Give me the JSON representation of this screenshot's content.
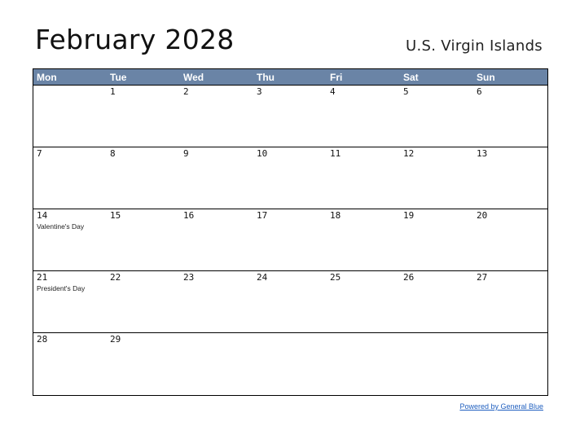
{
  "title": "February 2028",
  "region": "U.S. Virgin Islands",
  "headers": [
    "Mon",
    "Tue",
    "Wed",
    "Thu",
    "Fri",
    "Sat",
    "Sun"
  ],
  "weeks": [
    [
      {
        "day": "",
        "event": ""
      },
      {
        "day": "1",
        "event": ""
      },
      {
        "day": "2",
        "event": ""
      },
      {
        "day": "3",
        "event": ""
      },
      {
        "day": "4",
        "event": ""
      },
      {
        "day": "5",
        "event": ""
      },
      {
        "day": "6",
        "event": ""
      }
    ],
    [
      {
        "day": "7",
        "event": ""
      },
      {
        "day": "8",
        "event": ""
      },
      {
        "day": "9",
        "event": ""
      },
      {
        "day": "10",
        "event": ""
      },
      {
        "day": "11",
        "event": ""
      },
      {
        "day": "12",
        "event": ""
      },
      {
        "day": "13",
        "event": ""
      }
    ],
    [
      {
        "day": "14",
        "event": "Valentine's Day"
      },
      {
        "day": "15",
        "event": ""
      },
      {
        "day": "16",
        "event": ""
      },
      {
        "day": "17",
        "event": ""
      },
      {
        "day": "18",
        "event": ""
      },
      {
        "day": "19",
        "event": ""
      },
      {
        "day": "20",
        "event": ""
      }
    ],
    [
      {
        "day": "21",
        "event": "President's Day"
      },
      {
        "day": "22",
        "event": ""
      },
      {
        "day": "23",
        "event": ""
      },
      {
        "day": "24",
        "event": ""
      },
      {
        "day": "25",
        "event": ""
      },
      {
        "day": "26",
        "event": ""
      },
      {
        "day": "27",
        "event": ""
      }
    ],
    [
      {
        "day": "28",
        "event": ""
      },
      {
        "day": "29",
        "event": ""
      },
      {
        "day": "",
        "event": ""
      },
      {
        "day": "",
        "event": ""
      },
      {
        "day": "",
        "event": ""
      },
      {
        "day": "",
        "event": ""
      },
      {
        "day": "",
        "event": ""
      }
    ]
  ],
  "footer": {
    "powered_by": "Powered by General Blue"
  },
  "colors": {
    "header_bg": "#6a84a6",
    "link": "#1f5fbf"
  }
}
